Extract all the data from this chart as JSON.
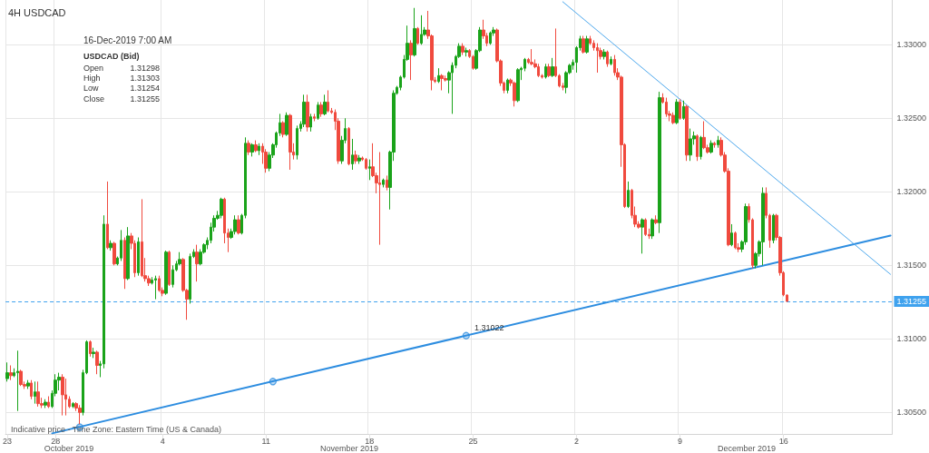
{
  "chart_data": {
    "type": "candlestick",
    "title": "4H USDCAD",
    "categories": [
      "23",
      null,
      null,
      null,
      null,
      null,
      null,
      null,
      null,
      null,
      null,
      null,
      null,
      null,
      "28",
      null,
      null,
      null,
      null,
      null,
      null,
      null,
      null,
      null,
      null,
      null,
      null,
      null,
      null,
      null,
      null,
      null,
      null,
      null,
      null,
      null,
      null,
      null,
      null,
      null,
      null,
      null,
      null,
      null,
      null,
      "4",
      null,
      null,
      null,
      null,
      null,
      null,
      null,
      null,
      null,
      null,
      null,
      null,
      null,
      null,
      null,
      null,
      null,
      null,
      null,
      null,
      null,
      null,
      null,
      null,
      null,
      null,
      null,
      null,
      null,
      "11",
      null,
      null,
      null,
      null,
      null,
      null,
      null,
      null,
      null,
      null,
      null,
      null,
      null,
      null,
      null,
      null,
      null,
      null,
      null,
      null,
      null,
      null,
      null,
      null,
      null,
      null,
      null,
      null,
      null,
      "18",
      null,
      null,
      null,
      null,
      null,
      null,
      null,
      null,
      null,
      null,
      null,
      null,
      null,
      null,
      null,
      null,
      null,
      null,
      null,
      null,
      null,
      null,
      null,
      null,
      null,
      null,
      null,
      null,
      null,
      "25",
      null,
      null,
      null,
      null,
      null,
      null,
      null,
      null,
      null,
      null,
      null,
      null,
      null,
      null,
      null,
      null,
      null,
      null,
      null,
      null,
      null,
      null,
      null,
      null,
      null,
      null,
      null,
      null,
      null,
      "2",
      null,
      null,
      null,
      null,
      null,
      null,
      null,
      null,
      null,
      null,
      null,
      null,
      null,
      null,
      null,
      null,
      null,
      null,
      null,
      null,
      null,
      null,
      null,
      null,
      null,
      null,
      null,
      null,
      null,
      "9",
      null,
      null,
      null,
      null,
      null,
      null,
      null,
      null,
      null,
      null,
      null,
      null,
      null,
      null,
      null,
      null,
      null,
      null,
      null,
      null,
      null,
      null,
      null,
      null,
      null,
      null,
      null,
      null,
      null,
      "16",
      null,
      null,
      null,
      null,
      null,
      null,
      null,
      null,
      null,
      null,
      null,
      null,
      null,
      null,
      null,
      null,
      null,
      null,
      null,
      null,
      null,
      null,
      null,
      null,
      null,
      null,
      null,
      null,
      null,
      null,
      null
    ],
    "ohlc": [
      [
        1.3073,
        1.3084,
        1.3071,
        1.3077
      ],
      [
        1.3077,
        1.3082,
        1.3072,
        1.3075
      ],
      [
        1.3075,
        1.308,
        1.3074,
        1.3077
      ],
      [
        1.3077,
        1.3092,
        1.3051,
        1.3078
      ],
      [
        1.3078,
        1.3079,
        1.3068,
        1.3069
      ],
      [
        1.3069,
        1.3071,
        1.3066,
        1.3068
      ],
      [
        1.3068,
        1.3072,
        1.3066,
        1.307
      ],
      [
        1.307,
        1.3072,
        1.3059,
        1.3061
      ],
      [
        1.3061,
        1.3071,
        1.3056,
        1.3064
      ],
      [
        1.3064,
        1.3071,
        1.3054,
        1.3056
      ],
      [
        1.3056,
        1.306,
        1.3053,
        1.3055
      ],
      [
        1.3055,
        1.3059,
        1.3053,
        1.3057
      ],
      [
        1.3057,
        1.3061,
        1.3053,
        1.3054
      ],
      [
        1.3054,
        1.3065,
        1.3053,
        1.3063
      ],
      [
        1.3063,
        1.3076,
        1.3061,
        1.3072
      ],
      [
        1.3072,
        1.3077,
        1.3065,
        1.3074
      ],
      [
        1.3074,
        1.3076,
        1.3048,
        1.3062
      ],
      [
        1.3062,
        1.3073,
        1.3048,
        1.3059
      ],
      [
        1.3059,
        1.3061,
        1.3053,
        1.3054
      ],
      [
        1.3054,
        1.3057,
        1.3053,
        1.3056
      ],
      [
        1.3056,
        1.3057,
        1.3051,
        1.3053
      ],
      [
        1.3053,
        1.3055,
        1.3042,
        1.305
      ],
      [
        1.305,
        1.3079,
        1.3048,
        1.3077
      ],
      [
        1.3077,
        1.3099,
        1.3076,
        1.3098
      ],
      [
        1.3098,
        1.3099,
        1.3088,
        1.309
      ],
      [
        1.309,
        1.3094,
        1.3087,
        1.3091
      ],
      [
        1.3091,
        1.3092,
        1.3076,
        1.3082
      ],
      [
        1.3082,
        1.3085,
        1.3074,
        1.3083
      ],
      [
        1.3083,
        1.3184,
        1.308,
        1.3178
      ],
      [
        1.3178,
        1.3207,
        1.3161,
        1.3162
      ],
      [
        1.3162,
        1.3167,
        1.316,
        1.3165
      ],
      [
        1.3165,
        1.3166,
        1.315,
        1.3151
      ],
      [
        1.3151,
        1.3156,
        1.315,
        1.3155
      ],
      [
        1.3155,
        1.3174,
        1.3153,
        1.3167
      ],
      [
        1.3167,
        1.3169,
        1.3134,
        1.3141
      ],
      [
        1.3141,
        1.3176,
        1.314,
        1.317
      ],
      [
        1.317,
        1.3172,
        1.3161,
        1.3165
      ],
      [
        1.3165,
        1.3167,
        1.3142,
        1.3145
      ],
      [
        1.3145,
        1.3169,
        1.3143,
        1.3166
      ],
      [
        1.3166,
        1.3195,
        1.3142,
        1.3143
      ],
      [
        1.3143,
        1.3155,
        1.3139,
        1.3141
      ],
      [
        1.3141,
        1.3143,
        1.3136,
        1.3138
      ],
      [
        1.3138,
        1.3142,
        1.3137,
        1.314
      ],
      [
        1.314,
        1.3143,
        1.3127,
        1.3141
      ],
      [
        1.3141,
        1.3143,
        1.3132,
        1.3133
      ],
      [
        1.3133,
        1.3135,
        1.3129,
        1.3131
      ],
      [
        1.3131,
        1.316,
        1.313,
        1.3159
      ],
      [
        1.3159,
        1.316,
        1.3136,
        1.3137
      ],
      [
        1.3137,
        1.315,
        1.3135,
        1.3147
      ],
      [
        1.3147,
        1.3153,
        1.3146,
        1.3151
      ],
      [
        1.3151,
        1.3159,
        1.315,
        1.3154
      ],
      [
        1.3154,
        1.3155,
        1.3132,
        1.3133
      ],
      [
        1.3133,
        1.3134,
        1.3113,
        1.3127
      ],
      [
        1.3127,
        1.3158,
        1.3124,
        1.3156
      ],
      [
        1.3156,
        1.3161,
        1.3155,
        1.3159
      ],
      [
        1.3159,
        1.3164,
        1.3139,
        1.3151
      ],
      [
        1.3151,
        1.3161,
        1.315,
        1.3159
      ],
      [
        1.3159,
        1.3165,
        1.3158,
        1.3164
      ],
      [
        1.3164,
        1.3169,
        1.3161,
        1.3167
      ],
      [
        1.3167,
        1.3179,
        1.3165,
        1.3176
      ],
      [
        1.3176,
        1.3184,
        1.3173,
        1.3182
      ],
      [
        1.3182,
        1.3187,
        1.3181,
        1.3184
      ],
      [
        1.3184,
        1.3196,
        1.3182,
        1.3195
      ],
      [
        1.3195,
        1.3196,
        1.3165,
        1.3172
      ],
      [
        1.3172,
        1.3175,
        1.3159,
        1.3169
      ],
      [
        1.3169,
        1.3175,
        1.3168,
        1.3173
      ],
      [
        1.3173,
        1.3184,
        1.3171,
        1.3181
      ],
      [
        1.3181,
        1.3184,
        1.3171,
        1.3172
      ],
      [
        1.3172,
        1.3185,
        1.3171,
        1.3184
      ],
      [
        1.3184,
        1.3237,
        1.3182,
        1.3233
      ],
      [
        1.3233,
        1.3235,
        1.3225,
        1.3227
      ],
      [
        1.3227,
        1.3233,
        1.3224,
        1.3232
      ],
      [
        1.3232,
        1.3235,
        1.3227,
        1.3228
      ],
      [
        1.3228,
        1.3233,
        1.3225,
        1.3231
      ],
      [
        1.3231,
        1.3233,
        1.3219,
        1.3227
      ],
      [
        1.3227,
        1.3229,
        1.3213,
        1.3216
      ],
      [
        1.3216,
        1.3227,
        1.3214,
        1.3225
      ],
      [
        1.3225,
        1.3233,
        1.3223,
        1.3232
      ],
      [
        1.3232,
        1.3241,
        1.323,
        1.324
      ],
      [
        1.324,
        1.3253,
        1.3238,
        1.3247
      ],
      [
        1.3247,
        1.3248,
        1.3237,
        1.3239
      ],
      [
        1.3239,
        1.3254,
        1.3238,
        1.3252
      ],
      [
        1.3252,
        1.3253,
        1.3215,
        1.3227
      ],
      [
        1.3227,
        1.3233,
        1.3222,
        1.3225
      ],
      [
        1.3225,
        1.3245,
        1.3222,
        1.3243
      ],
      [
        1.3243,
        1.3248,
        1.3241,
        1.3246
      ],
      [
        1.3246,
        1.3266,
        1.3244,
        1.3261
      ],
      [
        1.3261,
        1.3266,
        1.3241,
        1.3244
      ],
      [
        1.3244,
        1.3253,
        1.3241,
        1.3251
      ],
      [
        1.3251,
        1.3253,
        1.3248,
        1.325
      ],
      [
        1.325,
        1.3261,
        1.3249,
        1.3259
      ],
      [
        1.3259,
        1.3261,
        1.3251,
        1.3253
      ],
      [
        1.3253,
        1.3266,
        1.3252,
        1.3261
      ],
      [
        1.3261,
        1.3269,
        1.3254,
        1.3255
      ],
      [
        1.3255,
        1.3257,
        1.3253,
        1.3254
      ],
      [
        1.3254,
        1.3256,
        1.3242,
        1.3248
      ],
      [
        1.3248,
        1.325,
        1.3219,
        1.3221
      ],
      [
        1.3221,
        1.3238,
        1.3219,
        1.3235
      ],
      [
        1.3235,
        1.325,
        1.3233,
        1.3243
      ],
      [
        1.3243,
        1.3244,
        1.3218,
        1.3219
      ],
      [
        1.3219,
        1.3236,
        1.3215,
        1.3225
      ],
      [
        1.3225,
        1.3228,
        1.3219,
        1.3221
      ],
      [
        1.3221,
        1.3225,
        1.3219,
        1.3223
      ],
      [
        1.3223,
        1.3224,
        1.3221,
        1.3222
      ],
      [
        1.3222,
        1.3223,
        1.3215,
        1.3216
      ],
      [
        1.3216,
        1.3222,
        1.3208,
        1.3217
      ],
      [
        1.3217,
        1.3233,
        1.321,
        1.3211
      ],
      [
        1.3211,
        1.3213,
        1.3199,
        1.3206
      ],
      [
        1.3206,
        1.3227,
        1.3164,
        1.3205
      ],
      [
        1.3205,
        1.3209,
        1.3203,
        1.3208
      ],
      [
        1.3208,
        1.3211,
        1.3201,
        1.3203
      ],
      [
        1.3203,
        1.3228,
        1.3188,
        1.3227
      ],
      [
        1.3227,
        1.3269,
        1.3221,
        1.3267
      ],
      [
        1.3267,
        1.3272,
        1.3266,
        1.3271
      ],
      [
        1.3271,
        1.3279,
        1.3269,
        1.3278
      ],
      [
        1.3278,
        1.3293,
        1.3277,
        1.329
      ],
      [
        1.329,
        1.3313,
        1.3289,
        1.3301
      ],
      [
        1.3301,
        1.3303,
        1.3276,
        1.3293
      ],
      [
        1.3293,
        1.3325,
        1.3292,
        1.3311
      ],
      [
        1.3311,
        1.3312,
        1.33,
        1.3301
      ],
      [
        1.3301,
        1.332,
        1.33,
        1.3307
      ],
      [
        1.3307,
        1.3312,
        1.3306,
        1.331
      ],
      [
        1.331,
        1.3323,
        1.3304,
        1.3306
      ],
      [
        1.3306,
        1.3307,
        1.3269,
        1.3276
      ],
      [
        1.3276,
        1.3278,
        1.3274,
        1.3275
      ],
      [
        1.3275,
        1.3284,
        1.3274,
        1.3279
      ],
      [
        1.3279,
        1.328,
        1.3269,
        1.3277
      ],
      [
        1.3277,
        1.3279,
        1.3275,
        1.3276
      ],
      [
        1.3276,
        1.3282,
        1.3267,
        1.3281
      ],
      [
        1.3281,
        1.3288,
        1.3253,
        1.3286
      ],
      [
        1.3286,
        1.3293,
        1.3284,
        1.3292
      ],
      [
        1.3292,
        1.3301,
        1.3291,
        1.3299
      ],
      [
        1.3299,
        1.3301,
        1.3293,
        1.3295
      ],
      [
        1.3295,
        1.3298,
        1.3292,
        1.3296
      ],
      [
        1.3296,
        1.3297,
        1.3291,
        1.3292
      ],
      [
        1.3292,
        1.3293,
        1.3283,
        1.3284
      ],
      [
        1.3284,
        1.3297,
        1.3283,
        1.3296
      ],
      [
        1.3296,
        1.3312,
        1.3295,
        1.331
      ],
      [
        1.331,
        1.3317,
        1.3304,
        1.3306
      ],
      [
        1.3306,
        1.3308,
        1.3299,
        1.3301
      ],
      [
        1.3301,
        1.3309,
        1.33,
        1.3308
      ],
      [
        1.3308,
        1.3312,
        1.3306,
        1.331
      ],
      [
        1.331,
        1.3311,
        1.3288,
        1.3289
      ],
      [
        1.3289,
        1.329,
        1.3272,
        1.3274
      ],
      [
        1.3274,
        1.3275,
        1.3267,
        1.3269
      ],
      [
        1.3269,
        1.3277,
        1.3267,
        1.3276
      ],
      [
        1.3276,
        1.3277,
        1.3272,
        1.3274
      ],
      [
        1.3274,
        1.3275,
        1.3258,
        1.3262
      ],
      [
        1.3262,
        1.3284,
        1.3261,
        1.3283
      ],
      [
        1.3283,
        1.3285,
        1.3276,
        1.3284
      ],
      [
        1.3284,
        1.3291,
        1.3282,
        1.329
      ],
      [
        1.329,
        1.3291,
        1.3287,
        1.3288
      ],
      [
        1.3288,
        1.3297,
        1.3286,
        1.3287
      ],
      [
        1.3287,
        1.329,
        1.3284,
        1.3285
      ],
      [
        1.3285,
        1.3287,
        1.3278,
        1.3279
      ],
      [
        1.3279,
        1.328,
        1.3277,
        1.3278
      ],
      [
        1.3278,
        1.3287,
        1.3277,
        1.3285
      ],
      [
        1.3285,
        1.3287,
        1.3278,
        1.3279
      ],
      [
        1.3279,
        1.3291,
        1.3278,
        1.3285
      ],
      [
        1.3285,
        1.3311,
        1.3278,
        1.3279
      ],
      [
        1.3279,
        1.328,
        1.3271,
        1.3272
      ],
      [
        1.3272,
        1.3274,
        1.3269,
        1.3271
      ],
      [
        1.3271,
        1.3282,
        1.3267,
        1.3281
      ],
      [
        1.3281,
        1.3287,
        1.328,
        1.3286
      ],
      [
        1.3286,
        1.329,
        1.3283,
        1.3288
      ],
      [
        1.3288,
        1.3299,
        1.3281,
        1.3298
      ],
      [
        1.3298,
        1.3306,
        1.3296,
        1.3304
      ],
      [
        1.3304,
        1.3306,
        1.3294,
        1.3295
      ],
      [
        1.3295,
        1.3306,
        1.3294,
        1.3304
      ],
      [
        1.3304,
        1.3306,
        1.33,
        1.3301
      ],
      [
        1.3301,
        1.3303,
        1.3296,
        1.3298
      ],
      [
        1.3298,
        1.3301,
        1.3281,
        1.3296
      ],
      [
        1.3296,
        1.3298,
        1.329,
        1.3292
      ],
      [
        1.3292,
        1.3297,
        1.329,
        1.3295
      ],
      [
        1.3295,
        1.3296,
        1.3285,
        1.3287
      ],
      [
        1.3287,
        1.3292,
        1.3286,
        1.329
      ],
      [
        1.329,
        1.3293,
        1.3279,
        1.3281
      ],
      [
        1.3281,
        1.3284,
        1.3276,
        1.3278
      ],
      [
        1.3278,
        1.3279,
        1.3217,
        1.3232
      ],
      [
        1.3232,
        1.3233,
        1.3189,
        1.319
      ],
      [
        1.319,
        1.3207,
        1.3189,
        1.3201
      ],
      [
        1.3201,
        1.3202,
        1.3182,
        1.3184
      ],
      [
        1.3184,
        1.319,
        1.3176,
        1.3178
      ],
      [
        1.3178,
        1.318,
        1.3175,
        1.3176
      ],
      [
        1.3176,
        1.3182,
        1.3158,
        1.3181
      ],
      [
        1.3181,
        1.3182,
        1.317,
        1.3171
      ],
      [
        1.3171,
        1.3175,
        1.3168,
        1.317
      ],
      [
        1.317,
        1.3182,
        1.3168,
        1.3181
      ],
      [
        1.3181,
        1.3184,
        1.3178,
        1.3179
      ],
      [
        1.3179,
        1.3268,
        1.3172,
        1.3264
      ],
      [
        1.3264,
        1.3267,
        1.326,
        1.3261
      ],
      [
        1.3261,
        1.3264,
        1.3251,
        1.3253
      ],
      [
        1.3253,
        1.3255,
        1.3248,
        1.3252
      ],
      [
        1.3252,
        1.3254,
        1.3246,
        1.3247
      ],
      [
        1.3247,
        1.3263,
        1.3246,
        1.3261
      ],
      [
        1.3261,
        1.3263,
        1.3249,
        1.325
      ],
      [
        1.325,
        1.3262,
        1.3249,
        1.3258
      ],
      [
        1.3258,
        1.3259,
        1.3221,
        1.3225
      ],
      [
        1.3225,
        1.3243,
        1.3221,
        1.3236
      ],
      [
        1.3236,
        1.3241,
        1.3232,
        1.3238
      ],
      [
        1.3238,
        1.3239,
        1.3221,
        1.3224
      ],
      [
        1.3224,
        1.3238,
        1.3222,
        1.3237
      ],
      [
        1.3237,
        1.3248,
        1.3229,
        1.323
      ],
      [
        1.323,
        1.3232,
        1.3226,
        1.3227
      ],
      [
        1.3227,
        1.3235,
        1.3226,
        1.3233
      ],
      [
        1.3233,
        1.3234,
        1.323,
        1.3232
      ],
      [
        1.3232,
        1.3238,
        1.323,
        1.3235
      ],
      [
        1.3235,
        1.3237,
        1.3224,
        1.3225
      ],
      [
        1.3225,
        1.3227,
        1.3213,
        1.3214
      ],
      [
        1.3214,
        1.3216,
        1.3163,
        1.3164
      ],
      [
        1.3164,
        1.3178,
        1.3163,
        1.3172
      ],
      [
        1.3172,
        1.3173,
        1.3161,
        1.3162
      ],
      [
        1.3162,
        1.3165,
        1.3159,
        1.3161
      ],
      [
        1.3161,
        1.3167,
        1.3159,
        1.3166
      ],
      [
        1.3166,
        1.3192,
        1.3164,
        1.319
      ],
      [
        1.319,
        1.3192,
        1.3179,
        1.3181
      ],
      [
        1.3181,
        1.3182,
        1.3148,
        1.315
      ],
      [
        1.315,
        1.3159,
        1.3148,
        1.3158
      ],
      [
        1.3158,
        1.3167,
        1.3156,
        1.3166
      ],
      [
        1.3166,
        1.3203,
        1.315,
        1.3199
      ],
      [
        1.3199,
        1.3203,
        1.3182,
        1.3184
      ],
      [
        1.3184,
        1.3185,
        1.3162,
        1.3167
      ],
      [
        1.3167,
        1.3185,
        1.3165,
        1.3184
      ],
      [
        1.3184,
        1.3185,
        1.3167,
        1.3169
      ],
      [
        1.3169,
        1.317,
        1.3143,
        1.3145
      ],
      [
        1.3145,
        1.3146,
        1.3129,
        1.313
      ],
      [
        1.31298,
        1.31303,
        1.31254,
        1.31255
      ],
      null,
      null,
      null,
      null,
      null,
      null,
      null,
      null,
      null,
      null,
      null,
      null,
      null,
      null,
      null,
      null,
      null,
      null,
      null,
      null,
      null,
      null,
      null,
      null,
      null,
      null,
      null,
      null,
      null,
      null
    ],
    "colors": [
      "#1aa31a",
      "#f04a3e",
      "#1aa31a",
      "#1aa31a",
      "#f04a3e",
      "#f04a3e",
      "#1aa31a",
      "#f04a3e",
      "#1aa31a",
      "#f04a3e",
      "#f04a3e",
      "#1aa31a",
      "#f04a3e",
      "#1aa31a",
      "#1aa31a",
      "#1aa31a",
      "#f04a3e",
      "#f04a3e",
      "#f04a3e",
      "#1aa31a",
      "#f04a3e",
      "#f04a3e",
      "#1aa31a",
      "#1aa31a",
      "#f04a3e",
      "#1aa31a",
      "#f04a3e",
      "#1aa31a",
      "#1aa31a",
      "#f04a3e",
      "#1aa31a",
      "#f04a3e",
      "#1aa31a",
      "#1aa31a",
      "#f04a3e",
      "#1aa31a",
      "#f04a3e",
      "#f04a3e",
      "#1aa31a",
      "#f04a3e",
      "#f04a3e",
      "#f04a3e",
      "#1aa31a",
      "#1aa31a",
      "#f04a3e",
      "#f04a3e",
      "#1aa31a",
      "#f04a3e",
      "#1aa31a",
      "#1aa31a",
      "#1aa31a",
      "#f04a3e",
      "#f04a3e",
      "#1aa31a",
      "#1aa31a",
      "#f04a3e",
      "#1aa31a",
      "#1aa31a",
      "#1aa31a",
      "#1aa31a",
      "#1aa31a",
      "#1aa31a",
      "#1aa31a",
      "#f04a3e",
      "#f04a3e",
      "#1aa31a",
      "#1aa31a",
      "#f04a3e",
      "#1aa31a",
      "#1aa31a",
      "#f04a3e",
      "#1aa31a",
      "#f04a3e",
      "#1aa31a",
      "#f04a3e",
      "#f04a3e",
      "#1aa31a",
      "#1aa31a",
      "#1aa31a",
      "#1aa31a",
      "#f04a3e",
      "#1aa31a",
      "#f04a3e",
      "#f04a3e",
      "#1aa31a",
      "#1aa31a",
      "#1aa31a",
      "#f04a3e",
      "#1aa31a",
      "#f04a3e",
      "#1aa31a",
      "#f04a3e",
      "#1aa31a",
      "#f04a3e",
      "#f04a3e",
      "#f04a3e",
      "#f04a3e",
      "#1aa31a",
      "#1aa31a",
      "#f04a3e",
      "#1aa31a",
      "#f04a3e",
      "#1aa31a",
      "#f04a3e",
      "#f04a3e",
      "#1aa31a",
      "#f04a3e",
      "#f04a3e",
      "#f04a3e",
      "#1aa31a",
      "#f04a3e",
      "#1aa31a",
      "#1aa31a",
      "#1aa31a",
      "#1aa31a",
      "#1aa31a",
      "#1aa31a",
      "#f04a3e",
      "#1aa31a",
      "#f04a3e",
      "#1aa31a",
      "#1aa31a",
      "#f04a3e",
      "#f04a3e",
      "#f04a3e",
      "#1aa31a",
      "#f04a3e",
      "#f04a3e",
      "#1aa31a",
      "#1aa31a",
      "#1aa31a",
      "#1aa31a",
      "#f04a3e",
      "#1aa31a",
      "#f04a3e",
      "#f04a3e",
      "#1aa31a",
      "#1aa31a",
      "#f04a3e",
      "#f04a3e",
      "#1aa31a",
      "#1aa31a",
      "#f04a3e",
      "#f04a3e",
      "#f04a3e",
      "#1aa31a",
      "#f04a3e",
      "#f04a3e",
      "#1aa31a",
      "#1aa31a",
      "#1aa31a",
      "#f04a3e",
      "#f04a3e",
      "#f04a3e",
      "#f04a3e",
      "#f04a3e",
      "#1aa31a",
      "#f04a3e",
      "#1aa31a",
      "#f04a3e",
      "#f04a3e",
      "#f04a3e",
      "#1aa31a",
      "#1aa31a",
      "#1aa31a",
      "#1aa31a",
      "#1aa31a",
      "#f04a3e",
      "#1aa31a",
      "#f04a3e",
      "#f04a3e",
      "#f04a3e",
      "#f04a3e",
      "#1aa31a",
      "#f04a3e",
      "#1aa31a",
      "#f04a3e",
      "#f04a3e",
      "#f04a3e",
      "#f04a3e",
      "#1aa31a",
      "#f04a3e",
      "#f04a3e",
      "#f04a3e",
      "#1aa31a",
      "#f04a3e",
      "#f04a3e",
      "#1aa31a",
      "#f04a3e",
      "#1aa31a",
      "#f04a3e",
      "#f04a3e",
      "#f04a3e",
      "#f04a3e",
      "#1aa31a",
      "#f04a3e",
      "#1aa31a",
      "#f04a3e",
      "#1aa31a",
      "#1aa31a",
      "#f04a3e",
      "#1aa31a",
      "#f04a3e",
      "#f04a3e",
      "#1aa31a",
      "#f04a3e",
      "#1aa31a",
      "#f04a3e",
      "#f04a3e",
      "#f04a3e",
      "#1aa31a",
      "#f04a3e",
      "#f04a3e",
      "#1aa31a",
      "#1aa31a",
      "#f04a3e",
      "#f04a3e",
      "#1aa31a",
      "#1aa31a",
      "#1aa31a",
      "#f04a3e",
      "#f04a3e",
      "#1aa31a",
      "#f04a3e",
      "#f04a3e",
      "#f04a3e",
      "#f04a3e",
      null,
      null,
      null,
      null,
      null,
      null,
      null,
      null,
      null,
      null,
      null,
      null,
      null,
      null,
      null,
      null,
      null,
      null,
      null,
      null,
      null,
      null,
      null,
      null,
      null,
      null,
      null,
      null,
      null,
      null
    ],
    "series": [
      {
        "type": "line",
        "color": "#2d8de0",
        "values": [
          null,
          null,
          null,
          null,
          null,
          null,
          null,
          null,
          null,
          null,
          null,
          null,
          null,
          1.30358,
          null,
          null,
          null,
          null,
          null,
          null,
          null,
          null,
          null,
          null,
          null,
          null,
          null,
          null,
          null,
          null,
          null,
          null,
          null,
          null,
          null,
          null,
          null,
          null,
          null,
          null,
          null,
          null,
          null,
          null,
          null,
          null,
          null,
          null,
          null,
          null,
          null,
          null,
          null,
          null,
          null,
          null,
          null,
          null,
          null,
          null,
          null,
          null,
          null,
          null,
          null,
          null,
          null,
          null,
          null,
          null,
          null,
          null,
          null,
          null,
          null,
          null,
          null,
          null,
          null,
          null,
          null,
          null,
          null,
          null,
          null,
          null,
          null,
          null,
          null,
          null,
          null,
          null,
          null,
          null,
          null,
          null,
          null,
          null,
          null,
          null,
          null,
          null,
          null,
          null,
          null,
          null,
          null,
          null,
          null,
          null,
          null,
          null,
          null,
          null,
          null,
          null,
          null,
          null,
          null,
          null,
          null,
          null,
          null,
          null,
          null,
          null,
          null,
          null,
          null,
          null,
          null,
          null,
          null,
          null,
          null,
          null,
          null,
          null,
          null,
          null,
          null,
          null,
          null,
          null,
          null,
          null,
          null,
          null,
          null,
          null,
          null,
          null,
          null,
          null,
          null,
          null,
          null,
          null,
          null,
          null,
          null,
          null,
          null,
          null,
          null,
          null,
          null,
          null,
          null,
          null,
          null,
          null,
          null,
          null,
          null,
          null,
          null,
          null,
          null,
          null,
          null,
          null,
          null,
          null,
          null,
          null,
          null,
          null,
          null,
          null,
          null,
          null,
          null,
          null,
          null,
          null,
          null,
          null,
          null,
          null,
          null,
          null,
          null,
          null,
          null,
          null,
          null,
          null,
          null,
          null,
          null,
          null,
          null,
          null,
          null,
          null,
          null,
          null,
          null,
          null,
          null,
          null,
          null,
          null,
          null,
          null,
          null,
          null,
          null,
          null,
          null,
          null,
          null,
          null,
          null,
          null,
          null,
          null,
          null,
          null,
          null,
          null,
          null,
          null,
          null,
          null,
          null,
          null,
          null,
          null,
          null,
          null,
          null,
          null,
          null,
          null,
          1.31703
        ]
      },
      {
        "type": "scatter",
        "color": "#2d8de0",
        "marker": "circle",
        "values": [
          null,
          null,
          null,
          null,
          null,
          null,
          null,
          null,
          null,
          null,
          null,
          null,
          null,
          null,
          null,
          null,
          null,
          null,
          null,
          null,
          null,
          1.304,
          null,
          null,
          null,
          null,
          null,
          null,
          null,
          null,
          null,
          null,
          null,
          null,
          null,
          null,
          null,
          null,
          null,
          null,
          null,
          null,
          null,
          null,
          null,
          null,
          null,
          null,
          null,
          null,
          null,
          null,
          null,
          null,
          null,
          null,
          null,
          null,
          null,
          null,
          null,
          null,
          null,
          null,
          null,
          null,
          null,
          null,
          null,
          null,
          null,
          null,
          null,
          null,
          null,
          null,
          null,
          1.3071,
          null,
          null,
          null,
          null,
          null,
          null,
          null,
          null,
          null,
          null,
          null,
          null,
          null,
          null,
          null,
          null,
          null,
          null,
          null,
          null,
          null,
          null,
          null,
          null,
          null,
          null,
          null,
          null,
          null,
          null,
          null,
          null,
          null,
          null,
          null,
          null,
          null,
          null,
          null,
          null,
          null,
          null,
          null,
          null,
          null,
          null,
          null,
          null,
          null,
          null,
          null,
          null,
          null,
          null,
          null,
          1.31022,
          null,
          null,
          null,
          null,
          null,
          null,
          null,
          null,
          null,
          null,
          null,
          null,
          null,
          null,
          null,
          null,
          null,
          null,
          null,
          null,
          null,
          null,
          null,
          null,
          null,
          null,
          null,
          null,
          null,
          null,
          null,
          null,
          null,
          null,
          null,
          null,
          null,
          null,
          null,
          null,
          null,
          null,
          null,
          null,
          null,
          null,
          null,
          null,
          null,
          null,
          null,
          null,
          null,
          null,
          null,
          null,
          null,
          null,
          null,
          null,
          null,
          null,
          null,
          null,
          null,
          null,
          null,
          null,
          null,
          null,
          null,
          null,
          null,
          null,
          null,
          null,
          null,
          null,
          null,
          null,
          null,
          null,
          null,
          null,
          null,
          null,
          null,
          null,
          null,
          null,
          null,
          null,
          null,
          null,
          null,
          null,
          null,
          null,
          null,
          null,
          null,
          null,
          null,
          null,
          null,
          null,
          null,
          null,
          null,
          null,
          null,
          null,
          null,
          null,
          null,
          null,
          null,
          null,
          null,
          null,
          null,
          null,
          null
        ]
      },
      {
        "type": "line",
        "color": "#4ea8ec",
        "values": [
          null,
          null,
          null,
          null,
          null,
          null,
          null,
          null,
          null,
          null,
          null,
          null,
          null,
          null,
          null,
          null,
          null,
          null,
          null,
          null,
          null,
          null,
          null,
          null,
          null,
          null,
          null,
          null,
          null,
          null,
          null,
          null,
          null,
          null,
          null,
          null,
          null,
          null,
          null,
          null,
          null,
          null,
          null,
          null,
          null,
          null,
          null,
          null,
          null,
          null,
          null,
          null,
          null,
          null,
          null,
          null,
          null,
          null,
          null,
          null,
          null,
          null,
          null,
          null,
          null,
          null,
          null,
          null,
          null,
          null,
          null,
          null,
          null,
          null,
          null,
          null,
          null,
          null,
          null,
          null,
          null,
          null,
          null,
          null,
          null,
          null,
          null,
          null,
          null,
          null,
          null,
          null,
          null,
          null,
          null,
          null,
          null,
          null,
          null,
          null,
          null,
          null,
          null,
          null,
          null,
          null,
          null,
          null,
          null,
          null,
          null,
          null,
          null,
          null,
          null,
          null,
          null,
          null,
          null,
          null,
          null,
          null,
          null,
          null,
          null,
          null,
          null,
          null,
          null,
          null,
          null,
          null,
          null,
          null,
          null,
          null,
          null,
          null,
          null,
          null,
          null,
          null,
          null,
          null,
          null,
          null,
          null,
          null,
          null,
          null,
          null,
          null,
          null,
          null,
          null,
          null,
          null,
          null,
          null,
          null,
          null,
          1.33292,
          null,
          null,
          null,
          null,
          null,
          null,
          null,
          null,
          null,
          null,
          null,
          null,
          null,
          null,
          null,
          null,
          null,
          null,
          null,
          null,
          null,
          null,
          null,
          null,
          null,
          null,
          null,
          null,
          null,
          null,
          null,
          null,
          null,
          null,
          null,
          null,
          null,
          null,
          null,
          null,
          null,
          null,
          null,
          null,
          null,
          null,
          null,
          null,
          null,
          null,
          null,
          null,
          null,
          null,
          null,
          null,
          null,
          null,
          null,
          null,
          null,
          null,
          null,
          null,
          null,
          null,
          null,
          null,
          null,
          null,
          null,
          null,
          null,
          null,
          null,
          null,
          null,
          null,
          null,
          null,
          null,
          null,
          null,
          null,
          null,
          null,
          null,
          null,
          null,
          null,
          null,
          null,
          null,
          null,
          1.31439
        ]
      }
    ],
    "ylim": [
      1.30354,
      1.33304
    ],
    "yticks": [
      {
        "value": 1.305,
        "label": "1.30500"
      },
      {
        "value": 1.31,
        "label": "1.31000"
      },
      {
        "value": 1.315,
        "label": "1.31500"
      },
      {
        "value": 1.32,
        "label": "1.32000"
      },
      {
        "value": 1.325,
        "label": "1.32500"
      },
      {
        "value": 1.33,
        "label": "1.33000"
      }
    ],
    "grid": true,
    "ref_lines": [
      {
        "axis": "y",
        "value": 1.31255,
        "label": "1.31255",
        "color": "#3fa2ee",
        "line_style": "dashed"
      }
    ],
    "annotations": [
      "16-Dec-2019 7:00 AM",
      "USDCAD (Bid)",
      "Open",
      "1.31298",
      "High",
      "1.31303",
      "Low",
      "1.31254",
      "Close",
      "1.31255",
      "1.31022",
      "Indicative price - Time Zone: Eastern Time (US & Canada)",
      "October 2019",
      "November 2019",
      "December 2019"
    ]
  }
}
